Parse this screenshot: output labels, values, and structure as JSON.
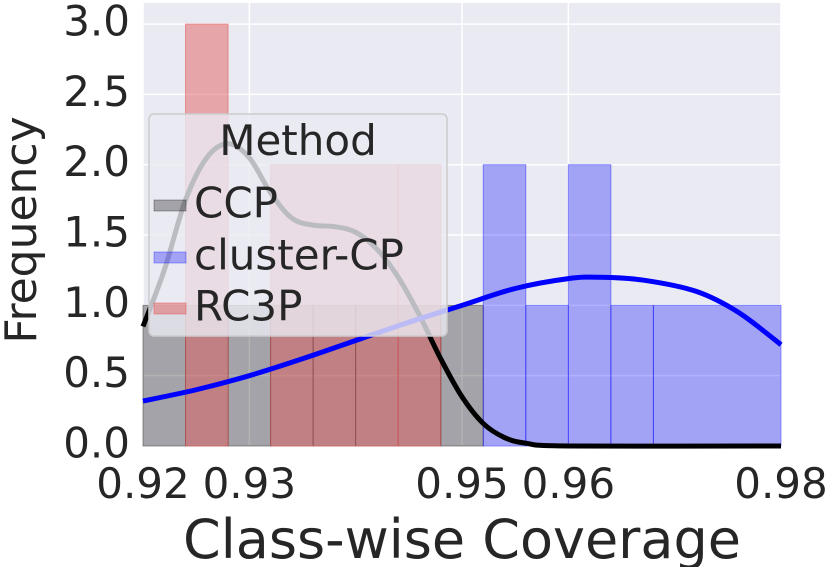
{
  "chart_data": {
    "type": "histogram",
    "xlabel": "Class-wise Coverage",
    "ylabel": "Frequency",
    "xlim": [
      0.92,
      0.98
    ],
    "ylim": [
      0,
      3.15
    ],
    "x_ticks": [
      {
        "v": 0.92,
        "label": "0.92"
      },
      {
        "v": 0.93,
        "label": "0.93"
      },
      {
        "v": 0.95,
        "label": "0.95"
      },
      {
        "v": 0.96,
        "label": "0.96"
      },
      {
        "v": 0.98,
        "label": "0.98"
      }
    ],
    "y_ticks": [
      {
        "v": 0.0,
        "label": "0.0"
      },
      {
        "v": 0.5,
        "label": "0.5"
      },
      {
        "v": 1.0,
        "label": "1.0"
      },
      {
        "v": 1.5,
        "label": "1.5"
      },
      {
        "v": 2.0,
        "label": "2.0"
      },
      {
        "v": 2.5,
        "label": "2.5"
      },
      {
        "v": 3.0,
        "label": "3.0"
      }
    ],
    "grid": true,
    "legend": {
      "title": "Method",
      "placement": "upper-left",
      "entries": [
        "CCP",
        "cluster-CP",
        "RC3P"
      ]
    },
    "series": [
      {
        "name": "CCP",
        "color": "#000000",
        "bars": [
          {
            "x0": 0.92,
            "x1": 0.924,
            "h": 1
          },
          {
            "x0": 0.924,
            "x1": 0.928,
            "h": 1
          },
          {
            "x0": 0.928,
            "x1": 0.932,
            "h": 1
          },
          {
            "x0": 0.932,
            "x1": 0.936,
            "h": 1
          },
          {
            "x0": 0.936,
            "x1": 0.94,
            "h": 1
          },
          {
            "x0": 0.94,
            "x1": 0.944,
            "h": 1
          },
          {
            "x0": 0.944,
            "x1": 0.948,
            "h": 1
          },
          {
            "x0": 0.948,
            "x1": 0.952,
            "h": 1
          }
        ],
        "kde": [
          [
            0.92,
            0.85
          ],
          [
            0.922,
            1.25
          ],
          [
            0.924,
            1.75
          ],
          [
            0.926,
            2.05
          ],
          [
            0.928,
            2.15
          ],
          [
            0.93,
            2.05
          ],
          [
            0.932,
            1.8
          ],
          [
            0.934,
            1.62
          ],
          [
            0.936,
            1.57
          ],
          [
            0.938,
            1.56
          ],
          [
            0.94,
            1.52
          ],
          [
            0.942,
            1.4
          ],
          [
            0.944,
            1.2
          ],
          [
            0.946,
            0.93
          ],
          [
            0.948,
            0.62
          ],
          [
            0.95,
            0.35
          ],
          [
            0.952,
            0.16
          ],
          [
            0.954,
            0.06
          ],
          [
            0.956,
            0.02
          ],
          [
            0.96,
            0.0
          ],
          [
            0.98,
            0.0
          ]
        ]
      },
      {
        "name": "cluster-CP",
        "color": "#0000ff",
        "bars": [
          {
            "x0": 0.952,
            "x1": 0.956,
            "h": 2
          },
          {
            "x0": 0.956,
            "x1": 0.96,
            "h": 1
          },
          {
            "x0": 0.96,
            "x1": 0.964,
            "h": 2
          },
          {
            "x0": 0.964,
            "x1": 0.968,
            "h": 1
          },
          {
            "x0": 0.968,
            "x1": 0.98,
            "h": 1
          }
        ],
        "kde": [
          [
            0.92,
            0.32
          ],
          [
            0.925,
            0.4
          ],
          [
            0.93,
            0.5
          ],
          [
            0.935,
            0.62
          ],
          [
            0.94,
            0.75
          ],
          [
            0.945,
            0.88
          ],
          [
            0.95,
            1.0
          ],
          [
            0.955,
            1.12
          ],
          [
            0.96,
            1.19
          ],
          [
            0.963,
            1.2
          ],
          [
            0.967,
            1.18
          ],
          [
            0.972,
            1.1
          ],
          [
            0.976,
            0.95
          ],
          [
            0.98,
            0.72
          ]
        ]
      },
      {
        "name": "RC3P",
        "color": "#e06060",
        "bars": [
          {
            "x0": 0.924,
            "x1": 0.928,
            "h": 3
          },
          {
            "x0": 0.932,
            "x1": 0.944,
            "h": 2
          },
          {
            "x0": 0.944,
            "x1": 0.948,
            "h": 2
          }
        ]
      }
    ]
  }
}
